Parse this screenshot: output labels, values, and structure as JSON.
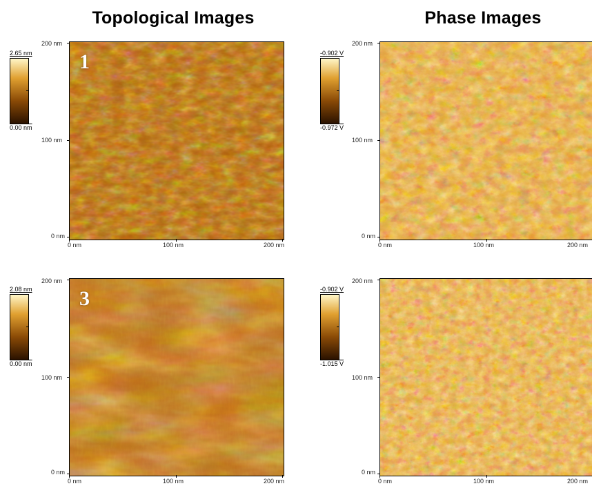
{
  "titles": {
    "topological": "Topological Images",
    "phase": "Phase Images"
  },
  "axis_ticks": {
    "y_top": "200 nm",
    "y_mid": "100 nm",
    "y_bottom": "0 nm",
    "x_left": "0 nm",
    "x_mid": "100 nm",
    "x_right": "200 nm"
  },
  "panels": [
    {
      "kind": "topological",
      "sample_number": "1",
      "scale_max": "2.65 nm",
      "scale_min": "0.00 nm",
      "palette": [
        "#3a1a00",
        "#8a4a06",
        "#d88a1e",
        "#fbeeb2"
      ]
    },
    {
      "kind": "phase",
      "sample_number": "",
      "scale_max": "-0.902 V",
      "scale_min": "-0.972 V",
      "palette": [
        "#3a1a00",
        "#8a4a06",
        "#d88a1e",
        "#fbeeb2"
      ]
    },
    {
      "kind": "topological",
      "sample_number": "3",
      "scale_max": "2.08 nm",
      "scale_min": "0.00 nm",
      "palette": [
        "#3a1a00",
        "#8a4a06",
        "#d88a1e",
        "#fbeeb2"
      ]
    },
    {
      "kind": "phase",
      "sample_number": "",
      "scale_max": "-0.902 V",
      "scale_min": "-1.015 V",
      "palette": [
        "#3a1a00",
        "#8a4a06",
        "#d88a1e",
        "#fbeeb2"
      ]
    }
  ]
}
